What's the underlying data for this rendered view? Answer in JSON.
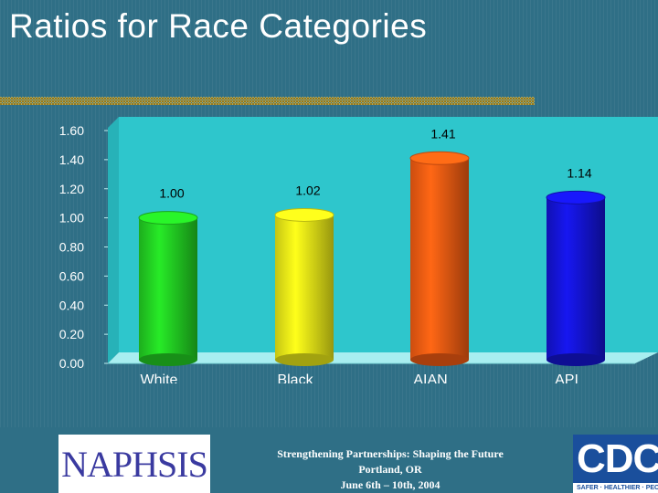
{
  "slide": {
    "title": "Ratios for Race Categories"
  },
  "chart_data": {
    "type": "bar",
    "categories": [
      "White",
      "Black",
      "AIAN",
      "API"
    ],
    "values": [
      1.0,
      1.02,
      1.41,
      1.14
    ],
    "value_labels": [
      "1.00",
      "1.02",
      "1.41",
      "1.14"
    ],
    "colors": [
      "#22cc22",
      "#e8e817",
      "#f05a12",
      "#1414d2"
    ],
    "ylim": [
      0,
      1.6
    ],
    "yticks": [
      "0.00",
      "0.20",
      "0.40",
      "0.60",
      "0.80",
      "1.00",
      "1.20",
      "1.40",
      "1.60"
    ],
    "title": "",
    "xlabel": "",
    "ylabel": "",
    "plot_background": "#2ec6cc",
    "grid": false,
    "legend": "none"
  },
  "footer": {
    "logo_text": "NAPHSIS",
    "line1": "Strengthening Partnerships: Shaping the Future",
    "line2": "Portland, OR",
    "line3": "June 6th – 10th, 2004",
    "cdc_text": "CDC",
    "cdc_tagline": "SAFER · HEALTHIER · PEOPLE"
  }
}
